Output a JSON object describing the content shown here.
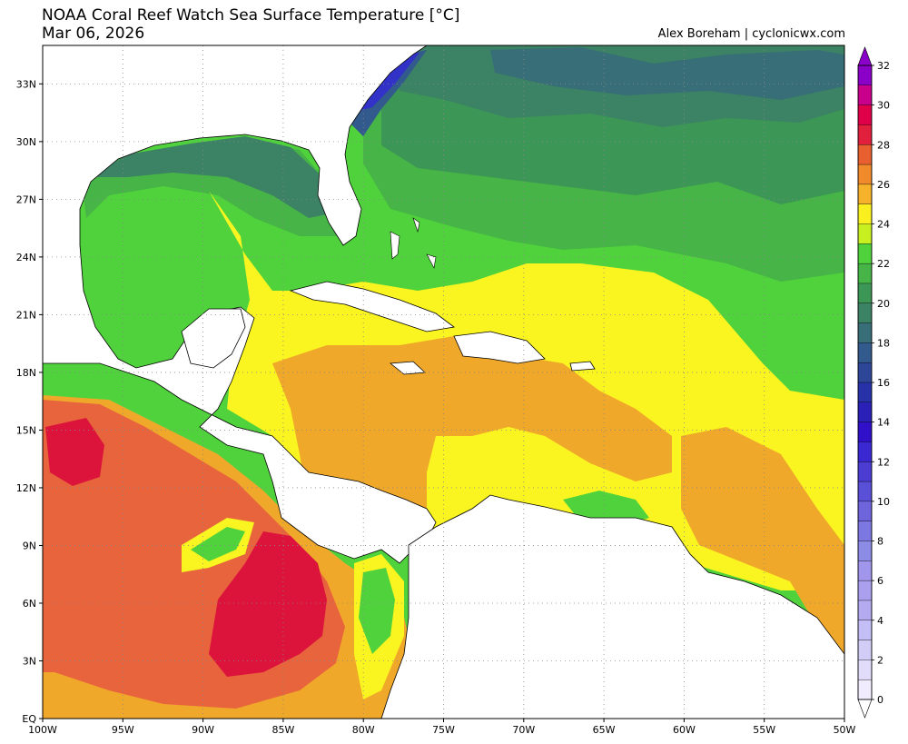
{
  "header": {
    "title": "NOAA Coral Reef Watch Sea Surface Temperature [°C]",
    "date": "Mar 06, 2026",
    "credit": "Alex Boreham | cyclonicwx.com"
  },
  "map": {
    "lat_labels": [
      "33N",
      "30N",
      "27N",
      "24N",
      "21N",
      "18N",
      "15N",
      "12N",
      "9N",
      "6N",
      "3N",
      "EQ"
    ],
    "lat_values": [
      33,
      30,
      27,
      24,
      21,
      18,
      15,
      12,
      9,
      6,
      3,
      0
    ],
    "lon_labels": [
      "100W",
      "95W",
      "90W",
      "85W",
      "80W",
      "75W",
      "70W",
      "65W",
      "60W",
      "55W",
      "50W"
    ],
    "lon_values": [
      -100,
      -95,
      -90,
      -85,
      -80,
      -75,
      -70,
      -65,
      -60,
      -55,
      -50
    ],
    "lat_range": [
      0,
      35
    ],
    "lon_range": [
      -100,
      -50
    ],
    "grid": true,
    "colorbar": {
      "labels": [
        "32",
        "30",
        "28",
        "26",
        "24",
        "22",
        "20",
        "18",
        "16",
        "14",
        "12",
        "10",
        "8",
        "6",
        "4",
        "2",
        "0"
      ],
      "min": 0,
      "max": 32,
      "step": 1,
      "colors_top_to_bottom": [
        "#8a00c8",
        "#c8008c",
        "#e0004a",
        "#e0203c",
        "#e86030",
        "#f08a2a",
        "#f5b22a",
        "#faf020",
        "#c8f020",
        "#50d23c",
        "#46b446",
        "#3c9655",
        "#3c8264",
        "#376e78",
        "#325a8c",
        "#2d4698",
        "#2832a8",
        "#2a20b8",
        "#3010c8",
        "#3a28d2",
        "#4b3cd2",
        "#5a50d7",
        "#6e64dc",
        "#7d78e1",
        "#8c8ce6",
        "#a096eb",
        "#aaa0ee",
        "#b4aaf0",
        "#c3bef5",
        "#d2cdf7",
        "#e1dcfa",
        "#f0ecfd"
      ]
    },
    "colors": {
      "land": "#ffffff",
      "sst_30_plus": "#dc143c",
      "sst_28": "#e8643c",
      "sst_27": "#f0a82a",
      "sst_26": "#faf520",
      "sst_25": "#50d23c",
      "sst_23": "#46b446",
      "sst_22": "#3c9655",
      "sst_21": "#3c8264",
      "sst_19": "#376e78",
      "sst_17": "#325a8c",
      "sst_cold": "#3232c8"
    }
  }
}
